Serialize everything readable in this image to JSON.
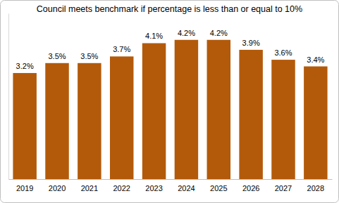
{
  "chart_data": {
    "type": "bar",
    "title": "Council meets benchmark if percentage is less than or equal to 10%",
    "categories": [
      "2019",
      "2020",
      "2021",
      "2022",
      "2023",
      "2024",
      "2025",
      "2026",
      "2027",
      "2028"
    ],
    "values": [
      3.2,
      3.5,
      3.5,
      3.7,
      4.1,
      4.2,
      4.2,
      3.9,
      3.6,
      3.4
    ],
    "value_labels": [
      "3.2%",
      "3.5%",
      "3.5%",
      "3.7%",
      "4.1%",
      "4.2%",
      "4.2%",
      "3.9%",
      "3.6%",
      "3.4%"
    ],
    "color": "#b35a0a",
    "ylim": [
      0,
      5
    ],
    "data_labels": true,
    "tick_labels": "x",
    "grid": false
  }
}
